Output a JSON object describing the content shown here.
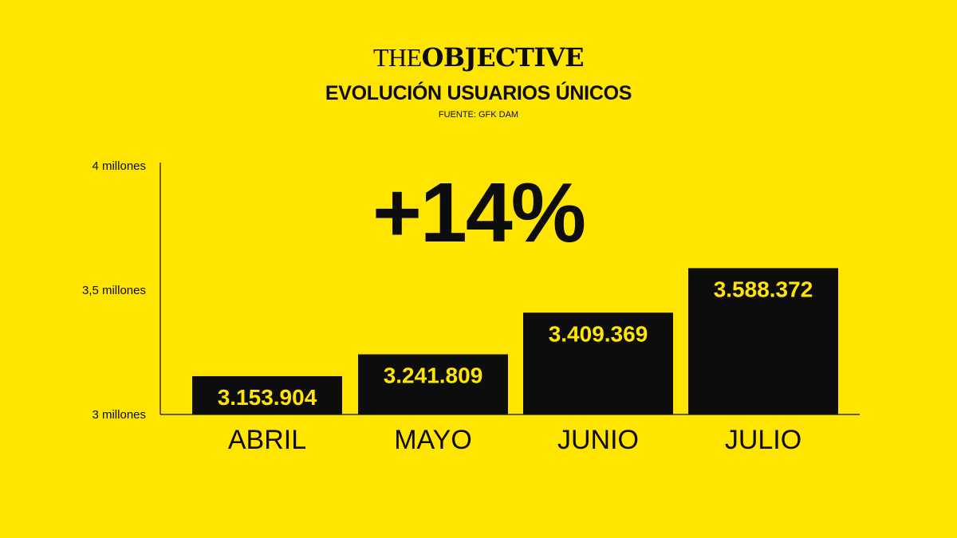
{
  "brand": {
    "the": "THE",
    "objective": "OBJECTIVE"
  },
  "chart_data": {
    "type": "bar",
    "title": "EVOLUCIÓN USUARIOS ÚNICOS",
    "source": "FUENTE: GFK DAM",
    "annotation": "+14%",
    "categories": [
      "ABRIL",
      "MAYO",
      "JUNIO",
      "JULIO"
    ],
    "values": [
      3153904,
      3241809,
      3409369,
      3588372
    ],
    "value_labels": [
      "3.153.904",
      "3.241.809",
      "3.409.369",
      "3.588.372"
    ],
    "ylim": [
      3000000,
      4000000
    ],
    "yticks": [
      {
        "value": 3000000,
        "label": "3 millones"
      },
      {
        "value": 3500000,
        "label": "3,5 millones"
      },
      {
        "value": 4000000,
        "label": "4 millones"
      }
    ],
    "grid": false,
    "colors": {
      "background": "#FFE500",
      "bar": "#0D0D0D",
      "value_label": "#FFE500",
      "text": "#0D0D0D"
    }
  }
}
